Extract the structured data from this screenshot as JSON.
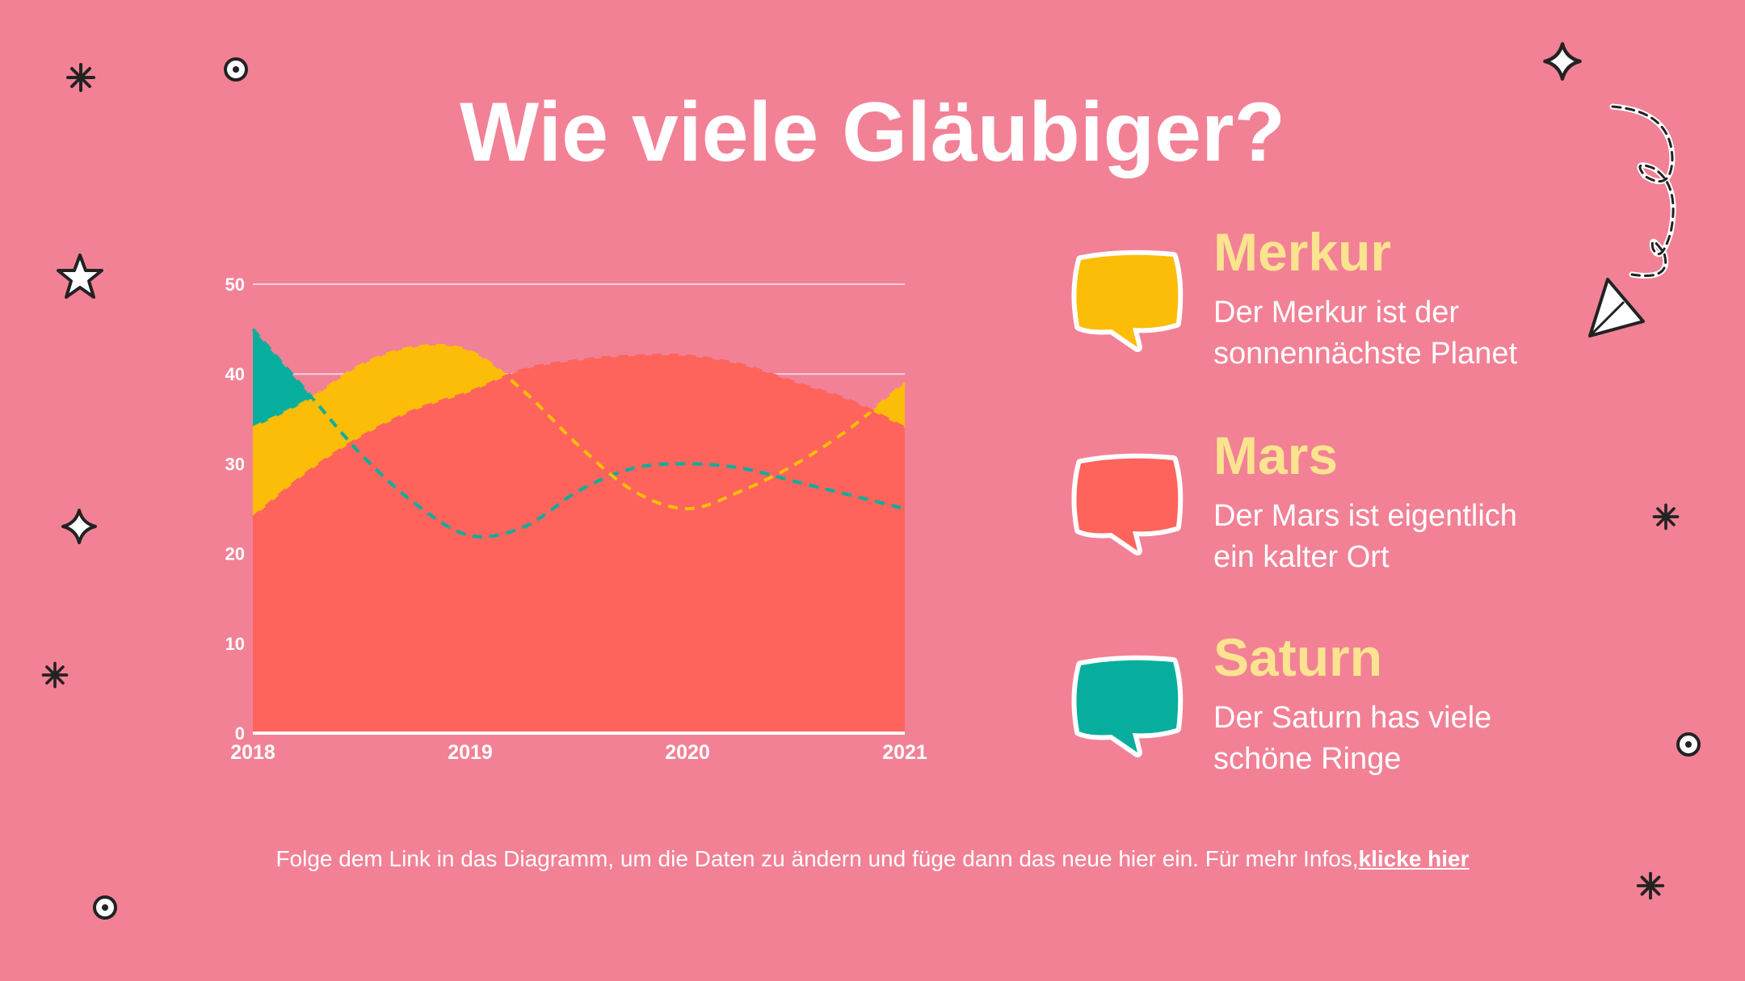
{
  "slide": {
    "title": "Wie viele Gläubiger?",
    "footer_text": "Folge dem Link in das Diagramm, um die Daten zu ändern und füge dann das neue hier ein. Für mehr Infos,",
    "footer_link": "klicke hier",
    "background_color": "#f28196",
    "title_color": "#ffffff",
    "legend_title_color": "#fbe38f"
  },
  "legend": [
    {
      "name": "Merkur",
      "line1": "Der Merkur ist der",
      "line2": "sonnennächste Planet",
      "color": "#fbbd08"
    },
    {
      "name": "Mars",
      "line1": "Der Mars ist eigentlich",
      "line2": "ein kalter Ort",
      "color": "#fe645c"
    },
    {
      "name": "Saturn",
      "line1": "Der Saturn has viele",
      "line2": "schöne Ringe",
      "color": "#08ae9d"
    }
  ],
  "chart_data": {
    "type": "area",
    "x": [
      2018,
      2018.25,
      2018.5,
      2018.75,
      2019,
      2019.25,
      2019.5,
      2019.75,
      2020,
      2020.25,
      2020.5,
      2020.75,
      2021
    ],
    "xticks": [
      "2018",
      "2019",
      "2020",
      "2021"
    ],
    "yticks": [
      "0",
      "10",
      "20",
      "30",
      "40",
      "50"
    ],
    "ylim": [
      0,
      50
    ],
    "grid": true,
    "series": [
      {
        "name": "Saturn",
        "color": "#08ae9d",
        "values": [
          45,
          38,
          31,
          25.5,
          22,
          23,
          27,
          29.5,
          30,
          29.5,
          28,
          26.5,
          25
        ]
      },
      {
        "name": "Merkur",
        "color": "#fbbd08",
        "values": [
          34,
          37,
          41,
          43,
          42.5,
          38,
          32,
          27,
          25,
          27,
          30,
          34,
          39
        ]
      },
      {
        "name": "Mars",
        "color": "#fe645c",
        "values": [
          24,
          29,
          33,
          36,
          38,
          40.5,
          41.5,
          42,
          42,
          41,
          39,
          37,
          34
        ]
      }
    ]
  }
}
